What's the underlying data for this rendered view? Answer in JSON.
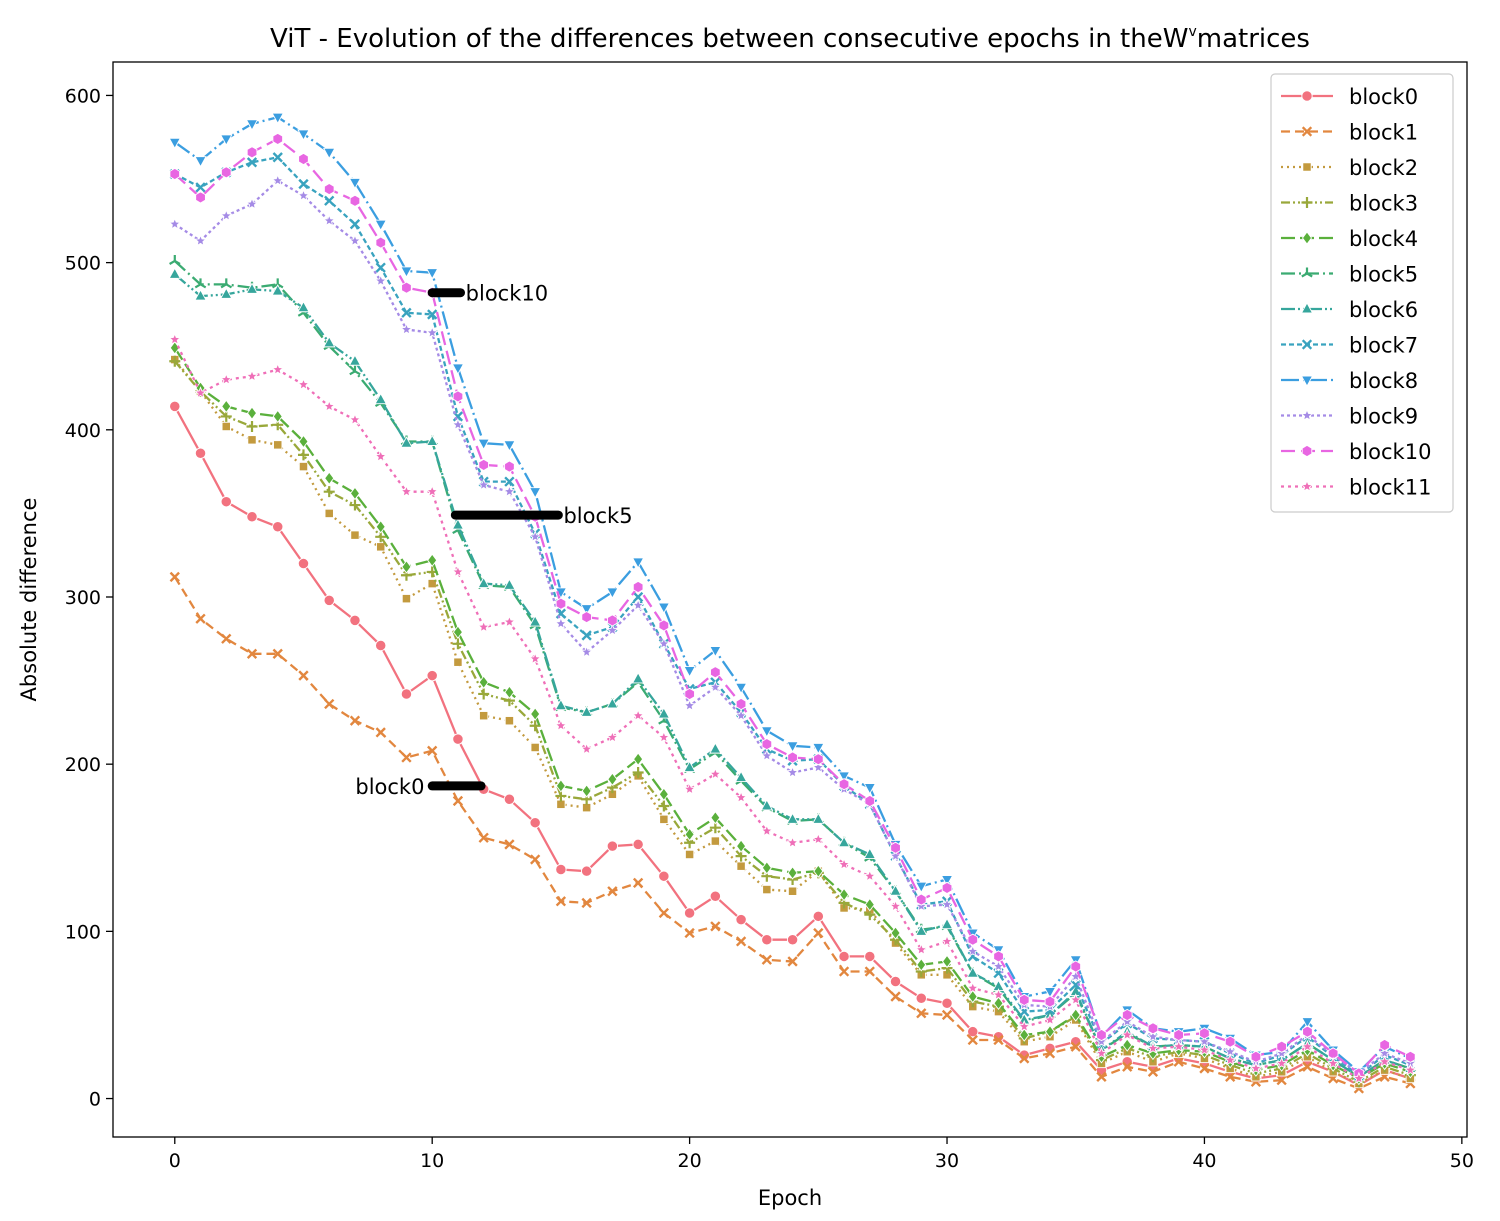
{
  "chart_data": {
    "type": "line",
    "title_main": "ViT - Evolution of the differences between consecutive epochs in the",
    "title_w": "W",
    "title_sup": "v",
    "title_end": "matrices",
    "xlabel": "Epoch",
    "ylabel": "Absolute difference",
    "xlim": [
      -2.4,
      50.2
    ],
    "ylim": [
      -23,
      620
    ],
    "xticks": [
      0,
      10,
      20,
      30,
      40,
      50
    ],
    "yticks": [
      0,
      100,
      200,
      300,
      400,
      500,
      600
    ],
    "grid": false,
    "legend_position": "top-right",
    "x": [
      0,
      1,
      2,
      3,
      4,
      5,
      6,
      7,
      8,
      9,
      10,
      11,
      12,
      13,
      14,
      15,
      16,
      17,
      18,
      19,
      20,
      21,
      22,
      23,
      24,
      25,
      26,
      27,
      28,
      29,
      30,
      31,
      32,
      33,
      34,
      35,
      36,
      37,
      38,
      39,
      40,
      41,
      42,
      43,
      44,
      45,
      46,
      47,
      48
    ],
    "series": [
      {
        "name": "block0",
        "color": "#f2727f",
        "dash": "",
        "marker": "circle",
        "values": [
          414,
          386,
          357,
          348,
          342,
          320,
          298,
          286,
          271,
          242,
          253,
          215,
          185,
          179,
          165,
          137,
          136,
          151,
          152,
          133,
          111,
          121,
          107,
          95,
          95,
          109,
          85,
          85,
          70,
          60,
          57,
          40,
          37,
          26,
          30,
          34,
          17,
          22,
          19,
          24,
          21,
          16,
          12,
          14,
          22,
          16,
          8,
          17,
          12
        ]
      },
      {
        "name": "block1",
        "color": "#e2873f",
        "dash": "9,5",
        "marker": "x",
        "values": [
          312,
          287,
          275,
          266,
          266,
          253,
          236,
          226,
          219,
          204,
          208,
          178,
          156,
          152,
          143,
          118,
          117,
          124,
          129,
          111,
          99,
          103,
          94,
          83,
          82,
          99,
          76,
          76,
          61,
          51,
          50,
          35,
          35,
          24,
          27,
          31,
          13,
          19,
          16,
          22,
          18,
          13,
          10,
          11,
          19,
          12,
          6,
          13,
          9
        ]
      },
      {
        "name": "block2",
        "color": "#c39a3e",
        "dash": "2,4",
        "marker": "square",
        "values": [
          442,
          423,
          402,
          394,
          391,
          378,
          350,
          337,
          330,
          299,
          308,
          261,
          229,
          226,
          210,
          176,
          174,
          182,
          193,
          167,
          146,
          154,
          139,
          125,
          124,
          136,
          114,
          113,
          93,
          74,
          74,
          55,
          52,
          34,
          37,
          47,
          21,
          28,
          22,
          27,
          24,
          18,
          13,
          16,
          25,
          16,
          9,
          17,
          12
        ]
      },
      {
        "name": "block3",
        "color": "#99a83a",
        "dash": "9,3,2,3,2,3",
        "marker": "plus",
        "values": [
          441,
          423,
          408,
          402,
          403,
          385,
          363,
          355,
          336,
          313,
          315,
          272,
          242,
          238,
          223,
          181,
          179,
          186,
          195,
          175,
          153,
          162,
          145,
          133,
          131,
          135,
          117,
          110,
          95,
          76,
          78,
          58,
          55,
          36,
          40,
          49,
          23,
          30,
          25,
          28,
          26,
          20,
          15,
          18,
          27,
          18,
          10,
          19,
          14
        ]
      },
      {
        "name": "block4",
        "color": "#5ab03c",
        "dash": "14,5",
        "marker": "diamond",
        "values": [
          449,
          425,
          414,
          410,
          408,
          393,
          371,
          362,
          342,
          318,
          322,
          279,
          249,
          243,
          230,
          187,
          184,
          191,
          203,
          182,
          158,
          168,
          151,
          138,
          135,
          136,
          122,
          116,
          99,
          80,
          82,
          61,
          57,
          38,
          40,
          50,
          25,
          32,
          27,
          29,
          28,
          22,
          17,
          20,
          29,
          20,
          12,
          21,
          16
        ]
      },
      {
        "name": "block5",
        "color": "#3bab72",
        "dash": "14,4,2,4",
        "marker": "tri",
        "values": [
          501,
          487,
          487,
          485,
          487,
          470,
          450,
          435,
          416,
          393,
          393,
          340,
          307,
          306,
          283,
          234,
          231,
          236,
          249,
          226,
          197,
          207,
          190,
          174,
          166,
          167,
          153,
          144,
          124,
          101,
          103,
          75,
          66,
          46,
          50,
          63,
          29,
          39,
          31,
          32,
          31,
          24,
          20,
          23,
          33,
          23,
          13,
          23,
          18
        ]
      },
      {
        "name": "block6",
        "color": "#36a69c",
        "dash": "14,3,2,3,2,3",
        "marker": "triangle",
        "values": [
          493,
          480,
          481,
          484,
          483,
          473,
          452,
          441,
          418,
          392,
          393,
          343,
          308,
          307,
          285,
          235,
          231,
          236,
          251,
          230,
          198,
          209,
          192,
          175,
          167,
          167,
          153,
          146,
          124,
          100,
          104,
          75,
          67,
          47,
          50,
          64,
          29,
          40,
          31,
          32,
          31,
          24,
          20,
          23,
          33,
          23,
          13,
          23,
          18
        ]
      },
      {
        "name": "block7",
        "color": "#39a3bf",
        "dash": "5,3",
        "marker": "x",
        "values": [
          553,
          545,
          554,
          560,
          563,
          547,
          537,
          523,
          497,
          470,
          469,
          408,
          369,
          369,
          338,
          290,
          277,
          282,
          300,
          272,
          245,
          249,
          231,
          209,
          202,
          203,
          187,
          176,
          145,
          116,
          118,
          85,
          75,
          52,
          53,
          68,
          33,
          45,
          36,
          35,
          34,
          27,
          21,
          26,
          37,
          25,
          14,
          26,
          20
        ]
      },
      {
        "name": "block8",
        "color": "#3b9ee0",
        "dash": "18,4,2,4",
        "marker": "tridown",
        "values": [
          572,
          561,
          574,
          583,
          587,
          577,
          566,
          548,
          523,
          495,
          494,
          437,
          392,
          391,
          363,
          303,
          293,
          303,
          321,
          294,
          256,
          268,
          246,
          220,
          211,
          210,
          193,
          186,
          152,
          127,
          131,
          99,
          89,
          61,
          64,
          83,
          37,
          53,
          42,
          40,
          42,
          36,
          26,
          28,
          46,
          29,
          16,
          31,
          24
        ]
      },
      {
        "name": "block9",
        "color": "#a58be6",
        "dash": "3,3",
        "marker": "star",
        "values": [
          523,
          513,
          528,
          535,
          549,
          540,
          525,
          513,
          489,
          460,
          458,
          403,
          367,
          363,
          336,
          284,
          267,
          280,
          295,
          272,
          235,
          246,
          229,
          205,
          195,
          198,
          185,
          176,
          145,
          115,
          116,
          88,
          79,
          56,
          55,
          73,
          34,
          46,
          37,
          35,
          34,
          28,
          22,
          27,
          38,
          26,
          15,
          27,
          21
        ]
      },
      {
        "name": "block10",
        "color": "#e866e2",
        "dash": "14,6",
        "marker": "hexagon",
        "values": [
          553,
          539,
          554,
          566,
          574,
          562,
          544,
          537,
          512,
          485,
          482,
          420,
          379,
          378,
          348,
          296,
          288,
          286,
          306,
          283,
          242,
          255,
          236,
          212,
          204,
          203,
          188,
          178,
          150,
          119,
          126,
          95,
          85,
          59,
          58,
          79,
          38,
          50,
          42,
          38,
          39,
          34,
          25,
          31,
          40,
          27,
          15,
          32,
          25
        ]
      },
      {
        "name": "block11",
        "color": "#ef6fb8",
        "dash": "3,4",
        "marker": "star",
        "values": [
          454,
          422,
          430,
          432,
          436,
          427,
          414,
          406,
          384,
          363,
          363,
          315,
          282,
          285,
          263,
          223,
          209,
          216,
          229,
          216,
          185,
          194,
          180,
          160,
          153,
          155,
          140,
          133,
          115,
          89,
          94,
          66,
          62,
          43,
          47,
          59,
          27,
          38,
          30,
          31,
          29,
          23,
          18,
          21,
          31,
          21,
          12,
          22,
          17
        ]
      }
    ],
    "annotations": [
      {
        "text": "block10",
        "x1": 10.0,
        "x2": 11.1,
        "y": 482,
        "text_x": 11.3,
        "anchor": "start"
      },
      {
        "text": "block5",
        "x1": 10.9,
        "x2": 14.9,
        "y": 349,
        "text_x": 15.1,
        "anchor": "start"
      },
      {
        "text": "block0",
        "x1": 10.0,
        "x2": 11.9,
        "y": 187,
        "text_x": 9.7,
        "anchor": "end"
      }
    ]
  }
}
